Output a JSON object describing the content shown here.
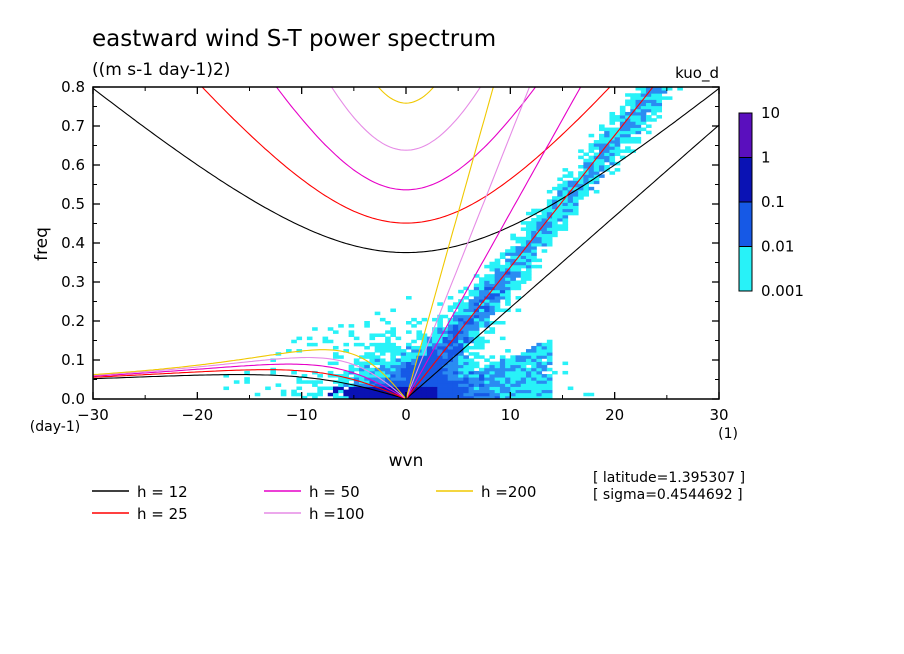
{
  "chart_data": {
    "type": "contour",
    "title": "eastward wind S-T power spectrum",
    "subtitle": "((m s-1 day-1)2)",
    "run_label": "kuo_d",
    "xlabel": "wvn",
    "ylabel": "freq",
    "x_units": "(1)",
    "y_units": "(day-1)",
    "xlim": [
      -30,
      30
    ],
    "ylim": [
      0,
      0.8
    ],
    "xticks": [
      -30,
      -20,
      -10,
      0,
      10,
      20,
      30
    ],
    "yticks": [
      0.0,
      0.1,
      0.2,
      0.3,
      0.4,
      0.5,
      0.6,
      0.7,
      0.8
    ],
    "colorbar": {
      "levels": [
        "10",
        "1",
        "0.1",
        "0.01",
        "0.001"
      ],
      "colors": [
        "#5a0fbe",
        "#0a12b4",
        "#1659e6",
        "#2a8cf2",
        "#28f2f8"
      ]
    },
    "dispersion_curves": [
      {
        "label": "h = 12",
        "color": "#000000"
      },
      {
        "label": "h = 25",
        "color": "#ff0000"
      },
      {
        "label": "h = 50",
        "color": "#e600c8"
      },
      {
        "label": "h =100",
        "color": "#e68ce6"
      },
      {
        "label": "h =200",
        "color": "#f0c800"
      }
    ],
    "info": [
      "[ latitude=1.395307 ]",
      "[ sigma=0.4544692 ]"
    ]
  }
}
